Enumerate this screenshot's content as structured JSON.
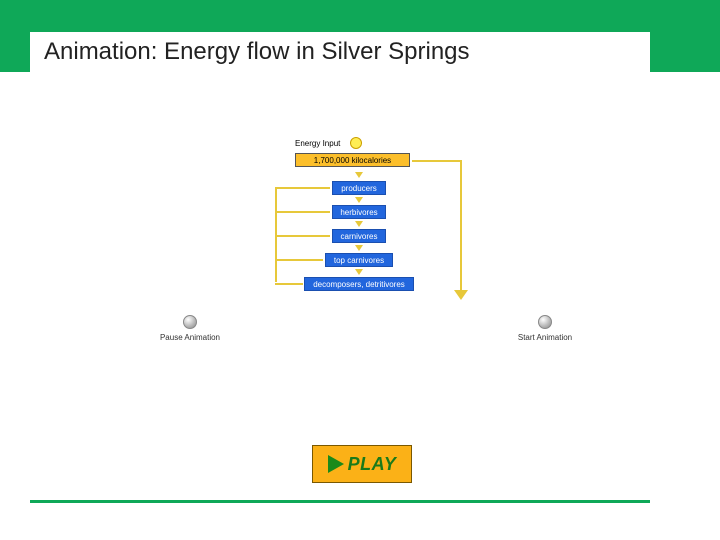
{
  "banner": {
    "bg_color": "#0fa858",
    "title": "Animation: Energy flow in Silver Springs",
    "title_fontsize": 24,
    "title_color": "#222222"
  },
  "diagram": {
    "type": "flowchart",
    "energy_input_label": "Energy Input",
    "kilocalories": "1,700,000 kilocalories",
    "kcal_bg": "#fcbf2b",
    "trophic_bg": "#2266dd",
    "trophic_text_color": "#ffffff",
    "arrow_color": "#e7c83a",
    "sun_color": "#ffee55",
    "levels": {
      "producers": "producers",
      "herbivores": "herbivores",
      "carnivores": "carnivores",
      "top_carnivores": "top carnivores",
      "decomposers": "decomposers, detritivores"
    }
  },
  "controls": {
    "pause": "Pause Animation",
    "start": "Start Animation"
  },
  "play_button": {
    "label": "PLAY",
    "bg_color": "#fbb117",
    "triangle_color": "#1a8a1a",
    "text_color": "#1a7a1a"
  },
  "footer_line_color": "#0fa858"
}
